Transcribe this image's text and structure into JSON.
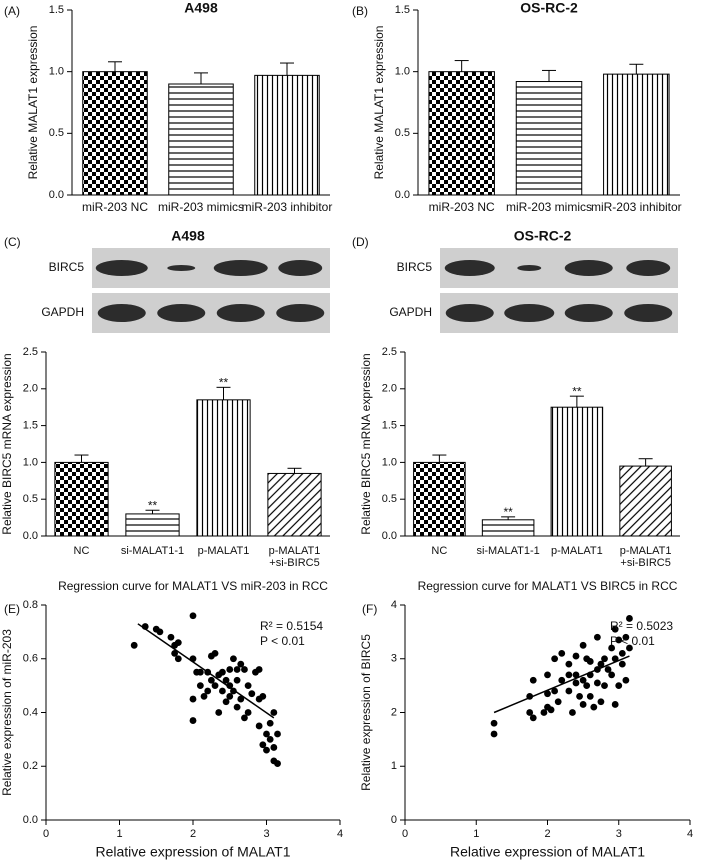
{
  "chart_data": [
    {
      "type": "bar",
      "panel_label": "(A)",
      "title": "A498",
      "ylabel": "Relative MALAT1 expression",
      "categories": [
        "miR-203 NC",
        "miR-203 mimics",
        "miR-203 inhibitor"
      ],
      "values": [
        1.0,
        0.9,
        0.97
      ],
      "errors": [
        0.08,
        0.09,
        0.1
      ],
      "patterns": [
        "checker",
        "hlines",
        "vlines"
      ],
      "color": "#000000",
      "ylim": [
        0,
        1.5
      ],
      "yticks": [
        {
          "value": 0,
          "label": "0.0"
        },
        0.5,
        {
          "value": 1,
          "label": "1.0"
        },
        1.5
      ]
    },
    {
      "type": "bar",
      "panel_label": "(B)",
      "title": "OS-RC-2",
      "ylabel": "Relative MALAT1 expression",
      "categories": [
        "miR-203 NC",
        "miR-203 mimics",
        "miR-203 inhibitor"
      ],
      "values": [
        1.0,
        0.92,
        0.98
      ],
      "errors": [
        0.09,
        0.09,
        0.08
      ],
      "patterns": [
        "checker",
        "hlines",
        "vlines"
      ],
      "color": "#000000",
      "ylim": [
        0,
        1.5
      ],
      "yticks": [
        {
          "value": 0,
          "label": "0.0"
        },
        0.5,
        {
          "value": 1,
          "label": "1.0"
        },
        1.5
      ]
    },
    {
      "type": "bar",
      "panel_label": "(C)",
      "title": "A498",
      "ylabel": "Relative BIRC5 mRNA expression",
      "blot_labels": [
        "BIRC5",
        "GAPDH"
      ],
      "categories": [
        "NC",
        "si-MALAT1-1",
        "p-MALAT1",
        "p-MALAT1\n+si-BIRC5"
      ],
      "values": [
        1.0,
        0.3,
        1.85,
        0.85
      ],
      "errors": [
        0.1,
        0.05,
        0.17,
        0.07
      ],
      "value_annotations": [
        null,
        "**",
        "**",
        null
      ],
      "patterns": [
        "checker",
        "hlines",
        "vlines",
        "diagonal"
      ],
      "color": "#000000",
      "ylim": [
        0,
        2.5
      ],
      "yticks": [
        {
          "value": 0,
          "label": "0.0"
        },
        0.5,
        {
          "value": 1,
          "label": "1.0"
        },
        1.5,
        {
          "value": 2,
          "label": "2.0"
        },
        2.5
      ]
    },
    {
      "type": "bar",
      "panel_label": "(D)",
      "title": "OS-RC-2",
      "ylabel": "Relative BIRC5 mRNA expression",
      "blot_labels": [
        "BIRC5",
        "GAPDH"
      ],
      "categories": [
        "NC",
        "si-MALAT1-1",
        "p-MALAT1",
        "p-MALAT1\n+si-BIRC5"
      ],
      "values": [
        1.0,
        0.22,
        1.75,
        0.95
      ],
      "errors": [
        0.1,
        0.04,
        0.15,
        0.1
      ],
      "value_annotations": [
        null,
        "**",
        "**",
        null
      ],
      "patterns": [
        "checker",
        "hlines",
        "vlines",
        "diagonal"
      ],
      "color": "#000000",
      "ylim": [
        0,
        2.5
      ],
      "yticks": [
        {
          "value": 0,
          "label": "0.0"
        },
        0.5,
        {
          "value": 1,
          "label": "1.0"
        },
        1.5,
        {
          "value": 2,
          "label": "2.0"
        },
        2.5
      ]
    },
    {
      "type": "scatter",
      "panel_label": "(E)",
      "title": "Regression curve for MALAT1 VS miR-203 in RCC",
      "xlabel": "Relative expression of MALAT1",
      "ylabel": "Relative expression of miR-203",
      "annotations": [
        "R² = 0.5154",
        "P < 0.01"
      ],
      "color": "#000000",
      "x": [
        1.2,
        1.35,
        1.5,
        1.55,
        1.7,
        1.75,
        1.75,
        1.8,
        1.8,
        2.0,
        2.0,
        2.0,
        2.0,
        2.05,
        2.1,
        2.1,
        2.15,
        2.2,
        2.2,
        2.25,
        2.25,
        2.3,
        2.3,
        2.35,
        2.35,
        2.4,
        2.4,
        2.45,
        2.45,
        2.5,
        2.5,
        2.5,
        2.55,
        2.55,
        2.6,
        2.6,
        2.6,
        2.65,
        2.65,
        2.7,
        2.7,
        2.75,
        2.75,
        2.8,
        2.85,
        2.9,
        2.9,
        2.95,
        2.95,
        3.0,
        3.0,
        3.05,
        3.05,
        3.1,
        3.1,
        3.15,
        3.15,
        2.9,
        3.1
      ],
      "values": [
        0.65,
        0.72,
        0.71,
        0.7,
        0.68,
        0.65,
        0.62,
        0.66,
        0.6,
        0.76,
        0.6,
        0.45,
        0.37,
        0.55,
        0.5,
        0.55,
        0.46,
        0.55,
        0.48,
        0.61,
        0.52,
        0.62,
        0.5,
        0.4,
        0.54,
        0.55,
        0.48,
        0.52,
        0.44,
        0.5,
        0.56,
        0.46,
        0.48,
        0.6,
        0.42,
        0.52,
        0.56,
        0.58,
        0.45,
        0.38,
        0.56,
        0.5,
        0.4,
        0.47,
        0.55,
        0.45,
        0.56,
        0.46,
        0.28,
        0.32,
        0.26,
        0.36,
        0.3,
        0.27,
        0.22,
        0.21,
        0.32,
        0.35,
        0.4
      ],
      "fit": {
        "x": [
          1.25,
          3.1
        ],
        "y": [
          0.73,
          0.38
        ]
      },
      "xlim": [
        0,
        4
      ],
      "xticks": [
        0,
        1,
        2,
        3,
        4
      ],
      "ylim": [
        0,
        0.8
      ],
      "yticks": [
        {
          "value": 0,
          "label": "0.0"
        },
        0.2,
        0.4,
        0.6,
        0.8
      ]
    },
    {
      "type": "scatter",
      "panel_label": "(F)",
      "title": "Regression curve for MALAT1 VS BIRC5 in RCC",
      "xlabel": "Relative expression of MALAT1",
      "ylabel": "Relative expression of BIRC5",
      "annotations": [
        "R² = 0.5023",
        "P < 0.01"
      ],
      "color": "#000000",
      "x": [
        1.25,
        1.25,
        1.75,
        1.75,
        1.8,
        1.8,
        1.95,
        2.0,
        2.0,
        2.05,
        2.1,
        2.1,
        2.15,
        2.2,
        2.2,
        2.3,
        2.3,
        2.35,
        2.4,
        2.4,
        2.4,
        2.45,
        2.5,
        2.5,
        2.5,
        2.55,
        2.6,
        2.6,
        2.6,
        2.65,
        2.7,
        2.7,
        2.7,
        2.75,
        2.75,
        2.8,
        2.8,
        2.85,
        2.9,
        2.9,
        2.95,
        2.95,
        2.95,
        3.0,
        3.0,
        3.05,
        3.05,
        3.1,
        3.1,
        3.15,
        3.15,
        2.3,
        2.0,
        2.55
      ],
      "values": [
        1.8,
        1.6,
        2.0,
        2.3,
        2.6,
        1.9,
        2.0,
        2.35,
        2.7,
        2.05,
        2.4,
        3.0,
        2.2,
        2.6,
        3.1,
        2.4,
        2.9,
        2.0,
        2.55,
        2.7,
        3.05,
        2.3,
        2.6,
        2.15,
        3.25,
        2.5,
        2.3,
        2.7,
        2.95,
        2.1,
        2.8,
        3.4,
        2.55,
        2.9,
        2.2,
        3.0,
        2.5,
        2.8,
        3.2,
        2.7,
        2.15,
        3.55,
        3.0,
        3.35,
        2.5,
        3.1,
        2.9,
        3.4,
        2.6,
        3.75,
        3.2,
        2.7,
        2.1,
        3.0
      ],
      "fit": {
        "x": [
          1.25,
          3.15
        ],
        "y": [
          2.0,
          3.05
        ]
      },
      "xlim": [
        0,
        4
      ],
      "xticks": [
        0,
        1,
        2,
        3,
        4
      ],
      "ylim": [
        0,
        4
      ],
      "yticks": [
        0,
        1,
        2,
        3,
        4
      ]
    }
  ]
}
